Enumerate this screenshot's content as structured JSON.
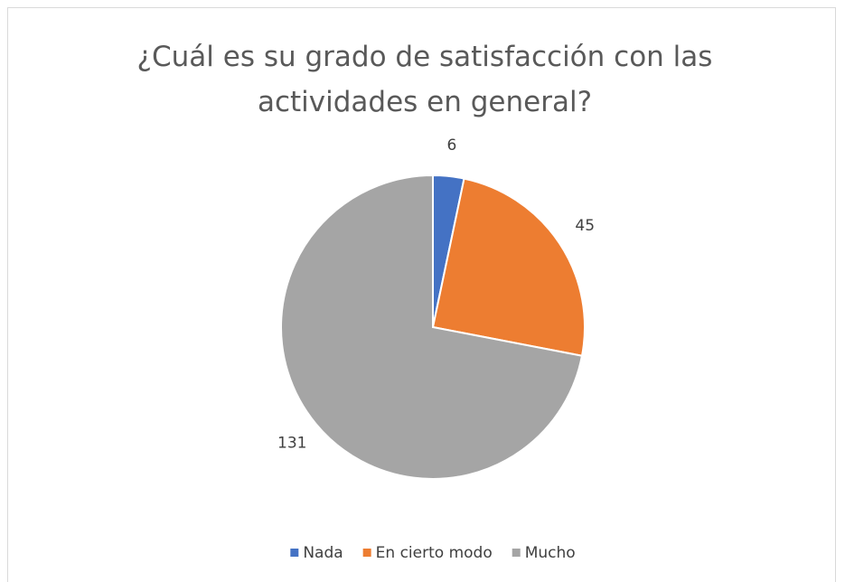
{
  "chart_data": {
    "type": "pie",
    "title": "¿Cuál es su grado de satisfacción con las actividades en general?",
    "categories": [
      "Nada",
      "En cierto modo",
      "Mucho"
    ],
    "values": [
      6,
      45,
      131
    ],
    "colors": [
      "#4472c4",
      "#ed7d31",
      "#a5a5a5"
    ],
    "legend": "bottom"
  }
}
